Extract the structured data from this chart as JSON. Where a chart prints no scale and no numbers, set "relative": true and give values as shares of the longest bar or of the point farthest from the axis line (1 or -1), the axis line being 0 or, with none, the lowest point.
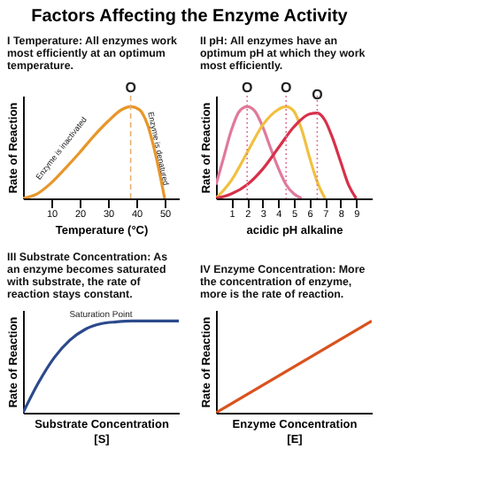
{
  "chart_data": [
    {
      "type": "line",
      "title": "Factors Affecting the Enzyme Activity",
      "subtitle": "I Temperature: All enzymes work most efficiently at an optimum temperature.",
      "xlabel": "Temperature (°C)",
      "ylabel": "Rate of Reaction",
      "relative": true,
      "tick_labels": "x",
      "xlim": [
        0,
        55
      ],
      "xticks": [
        10,
        20,
        30,
        40,
        50
      ],
      "series": [
        {
          "color": "#e8962a",
          "x": [
            0,
            5,
            10,
            15,
            20,
            25,
            30,
            35,
            38,
            41,
            44,
            47,
            50
          ],
          "values": [
            0,
            0.05,
            0.17,
            0.33,
            0.5,
            0.68,
            0.84,
            0.97,
            1,
            0.97,
            0.8,
            0.45,
            0
          ]
        }
      ],
      "ref_lines": [
        {
          "axis": "x",
          "value": 38,
          "color": "#e8b070",
          "line_style": "dashed"
        }
      ],
      "annotations": [
        {
          "text": "O",
          "x": 38,
          "y": 1
        },
        "Enzyme is inactivated",
        "Enzyme is denatured"
      ]
    },
    {
      "type": "line",
      "subtitle": "II pH: All enzymes have an optimum pH at which they work most efficiently.",
      "xlabel": "acidic  pH  alkaline",
      "ylabel": "Rate of Reaction",
      "relative": true,
      "tick_labels": "x",
      "xlim": [
        0,
        10
      ],
      "xticks": [
        1,
        2,
        3,
        4,
        5,
        6,
        7,
        8,
        9
      ],
      "series": [
        {
          "color": "#e07a9a",
          "x": [
            0,
            0.5,
            1,
            1.5,
            2,
            2.5,
            3,
            3.5,
            4,
            4.5,
            5,
            5.5
          ],
          "values": [
            0.15,
            0.45,
            0.75,
            0.95,
            1,
            0.95,
            0.78,
            0.55,
            0.33,
            0.15,
            0.05,
            0
          ]
        },
        {
          "color": "#f0c040",
          "x": [
            0,
            1,
            2,
            3,
            4,
            4.5,
            5,
            5.5,
            6,
            6.5,
            7
          ],
          "values": [
            0,
            0.2,
            0.5,
            0.8,
            0.97,
            1,
            0.95,
            0.75,
            0.45,
            0.18,
            0
          ]
        },
        {
          "color": "#d8304a",
          "x": [
            0,
            1,
            2,
            3,
            4,
            5,
            6,
            6.5,
            7,
            7.5,
            8,
            8.5,
            9
          ],
          "values": [
            0,
            0.05,
            0.15,
            0.32,
            0.55,
            0.78,
            0.92,
            0.93,
            0.85,
            0.65,
            0.4,
            0.15,
            0
          ]
        }
      ],
      "ref_lines": [
        {
          "axis": "x",
          "value": 2,
          "color": "#e07a9a",
          "line_style": "dotted"
        },
        {
          "axis": "x",
          "value": 4.5,
          "color": "#e07a9a",
          "line_style": "dotted"
        },
        {
          "axis": "x",
          "value": 6.5,
          "color": "#e07a9a",
          "line_style": "dotted"
        }
      ],
      "annotations": [
        {
          "text": "O",
          "x": 2,
          "y": 1
        },
        {
          "text": "O",
          "x": 4.5,
          "y": 1
        },
        {
          "text": "O",
          "x": 6.5,
          "y": 0.93
        }
      ]
    },
    {
      "type": "line",
      "subtitle": "III Substrate Concentration: As an enzyme becomes saturated with substrate, the rate of reaction stays constant.",
      "xlabel": "Substrate Concentration\n[S]",
      "ylabel": "Rate of Reaction",
      "relative": true,
      "tick_labels": false,
      "categories": [
        null,
        null,
        null,
        null,
        null,
        null,
        null,
        null,
        null,
        null,
        null
      ],
      "series": [
        {
          "color": "#2b4a8c",
          "values": [
            0,
            0.33,
            0.6,
            0.79,
            0.91,
            0.97,
            0.99,
            1,
            1,
            1,
            1
          ]
        }
      ],
      "annotations": [
        "Saturation Point"
      ]
    },
    {
      "type": "line",
      "subtitle": "IV Enzyme Concentration: More the concentration of enzyme, more is the rate of reaction.",
      "xlabel": "Enzyme Concentration\n[E]",
      "ylabel": "Rate of Reaction",
      "relative": true,
      "tick_labels": false,
      "categories": [
        null,
        null
      ],
      "series": [
        {
          "color": "#d9531e",
          "values": [
            0,
            1
          ]
        }
      ]
    }
  ]
}
